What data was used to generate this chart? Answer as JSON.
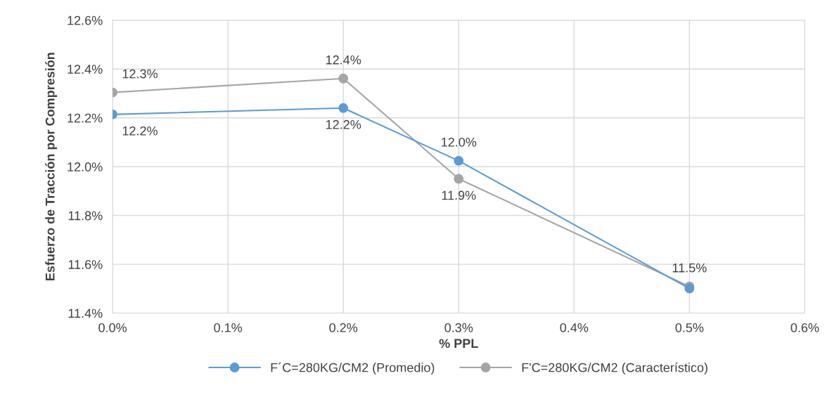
{
  "chart_data": {
    "type": "line",
    "xlabel": "% PPL",
    "ylabel": "Esfuerzo de Tracción por Compresión",
    "x": [
      0.0,
      0.2,
      0.3,
      0.5
    ],
    "series": [
      {
        "name": "F´C=280KG/CM2 (Promedio)",
        "color": "#5b9bd5",
        "values": [
          12.214,
          12.24,
          12.024,
          11.501
        ],
        "value_labels": [
          "12.2%",
          "12.2%",
          "12.0%",
          null
        ]
      },
      {
        "name": "F'C=280KG/CM2 (Característico)",
        "color": "#a5a5a5",
        "values": [
          12.304,
          12.361,
          11.95,
          11.509
        ],
        "value_labels": [
          "12.3%",
          "12.4%",
          "11.9%",
          "11.5%"
        ]
      }
    ],
    "xlim": [
      0.0,
      0.6
    ],
    "xticks": [
      {
        "value": 0.0,
        "label": "0.0%"
      },
      {
        "value": 0.1,
        "label": "0.1%"
      },
      {
        "value": 0.2,
        "label": "0.2%"
      },
      {
        "value": 0.3,
        "label": "0.3%"
      },
      {
        "value": 0.4,
        "label": "0.4%"
      },
      {
        "value": 0.5,
        "label": "0.5%"
      },
      {
        "value": 0.6,
        "label": "0.6%"
      }
    ],
    "ylim": [
      11.4,
      12.6
    ],
    "yticks": [
      {
        "value": 11.4,
        "label": "11.4%"
      },
      {
        "value": 11.6,
        "label": "11.6%"
      },
      {
        "value": 11.8,
        "label": "11.8%"
      },
      {
        "value": 12.0,
        "label": "12.0%"
      },
      {
        "value": 12.2,
        "label": "12.2%"
      },
      {
        "value": 12.4,
        "label": "12.4%"
      },
      {
        "value": 12.6,
        "label": "12.6%"
      }
    ],
    "grid": true,
    "legend": "bottom",
    "marker": "circle",
    "line_style": "solid"
  }
}
